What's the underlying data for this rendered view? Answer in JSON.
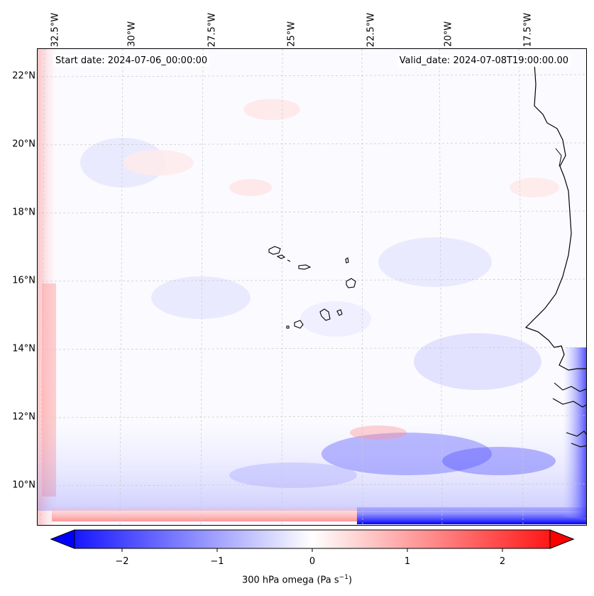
{
  "map": {
    "start_date": "Start date: 2024-07-06_00:00:00",
    "valid_date": "Valid_date: 2024-07-08T19:00:00.00",
    "lon_labels": [
      "32.5°W",
      "30°W",
      "27.5°W",
      "25°W",
      "22.5°W",
      "20°W",
      "17.5°W"
    ],
    "lat_labels": [
      "22°N",
      "20°N",
      "18°N",
      "16°N",
      "14°N",
      "12°N",
      "10°N"
    ]
  },
  "colorbar": {
    "ticks": [
      "−2",
      "−1",
      "0",
      "1",
      "2"
    ],
    "label_main": "300 hPa omega (Pa s",
    "label_exp": "−1",
    "label_end": ")",
    "min": -2.75,
    "max": 2.75,
    "colors": {
      "low": "#0000ff",
      "mid": "#ffffff",
      "high": "#ff0000"
    }
  }
}
